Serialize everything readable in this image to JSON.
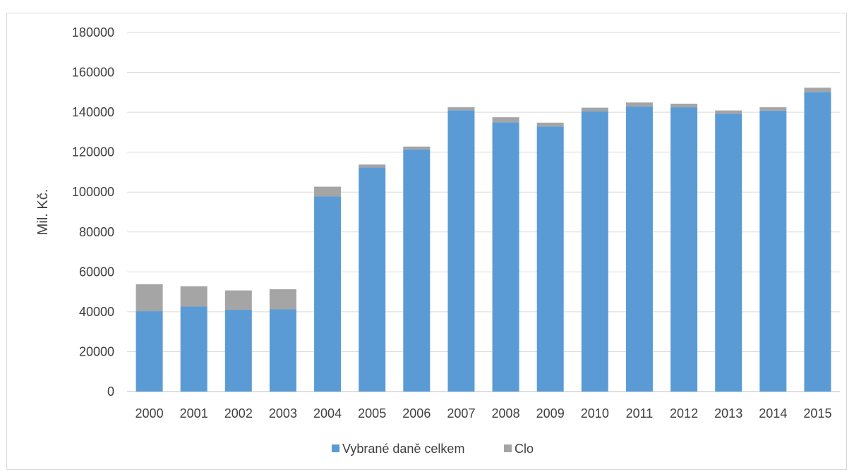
{
  "chart_data": {
    "type": "bar",
    "stacked": true,
    "categories": [
      "2000",
      "2001",
      "2002",
      "2003",
      "2004",
      "2005",
      "2006",
      "2007",
      "2008",
      "2009",
      "2010",
      "2011",
      "2012",
      "2013",
      "2014",
      "2015"
    ],
    "series": [
      {
        "name": "Vybrané daně celkem",
        "color": "#5b9bd5",
        "values": [
          40300,
          42600,
          41000,
          41200,
          97800,
          112300,
          121400,
          141000,
          135000,
          132900,
          140500,
          142900,
          142500,
          139300,
          140800,
          150200
        ]
      },
      {
        "name": "Clo",
        "color": "#a5a5a5",
        "values": [
          13500,
          10200,
          9700,
          10100,
          4900,
          1500,
          1400,
          1500,
          2500,
          1900,
          1800,
          2000,
          1800,
          1600,
          1700,
          2100
        ]
      }
    ],
    "xlabel": "",
    "ylabel": "Mil. Kč.",
    "ylim": [
      0,
      180000
    ],
    "yticks": [
      "0",
      "20000",
      "40000",
      "60000",
      "80000",
      "100000",
      "120000",
      "140000",
      "160000",
      "180000"
    ],
    "grid": true,
    "legend_position": "bottom"
  }
}
